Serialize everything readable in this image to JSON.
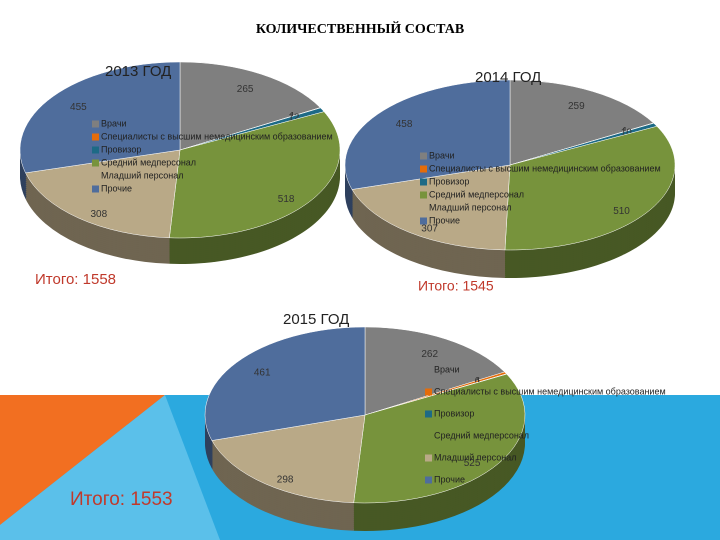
{
  "title": "КОЛИЧЕСТВЕННЫЙ СОСТАВ",
  "chart_data": [
    {
      "type": "pie",
      "title": "2013 ГОД",
      "note": "Итого: 1558",
      "categories": [
        "Врачи",
        "Специалисты с высшим немедицинским образованием",
        "Провизор",
        "Средний медперсонал",
        "Младший персонал",
        "Прочие"
      ],
      "values": [
        265,
        1,
        12,
        518,
        308,
        455
      ],
      "colors": [
        "#7f7f7f",
        "#e46c0a",
        "#1d6a86",
        "#77933c",
        "#b9a987",
        "#4f6d9c"
      ]
    },
    {
      "type": "pie",
      "title": "2014 ГОД",
      "note": "Итого: 1545",
      "categories": [
        "Врачи",
        "Специалисты с высшим немедицинским образованием",
        "Провизор",
        "Средний медперсонал",
        "Младший персонал",
        "Прочие"
      ],
      "values": [
        259,
        1,
        10,
        510,
        307,
        458
      ],
      "colors": [
        "#7f7f7f",
        "#e46c0a",
        "#1d6a86",
        "#77933c",
        "#b9a987",
        "#4f6d9c"
      ]
    },
    {
      "type": "pie",
      "title": "2015 ГОД",
      "note": "Итого: 1553",
      "categories": [
        "Врачи",
        "Специалисты с высшим немедицинским образованием",
        "Провизор",
        "Средний медперсонал",
        "Младший персонал",
        "Прочие"
      ],
      "values": [
        262,
        6,
        1,
        525,
        298,
        461
      ],
      "colors": [
        "#7f7f7f",
        "#e46c0a",
        "#1d6a86",
        "#77933c",
        "#b9a987",
        "#4f6d9c"
      ]
    }
  ]
}
